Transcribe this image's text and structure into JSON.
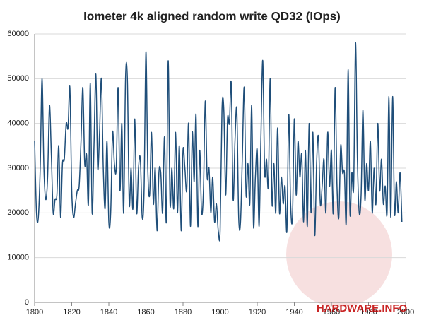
{
  "chart_data": {
    "type": "line",
    "title": "Iometer 4k aligned random write QD32 (IOps)",
    "watermark": "HARDWARE.INFO",
    "x": [
      1800,
      1801,
      1802,
      1803,
      1804,
      1805,
      1806,
      1807,
      1808,
      1809,
      1810,
      1811,
      1812,
      1813,
      1814,
      1815,
      1816,
      1817,
      1818,
      1819,
      1820,
      1821,
      1822,
      1823,
      1824,
      1825,
      1826,
      1827,
      1828,
      1829,
      1830,
      1831,
      1832,
      1833,
      1834,
      1835,
      1836,
      1837,
      1838,
      1839,
      1840,
      1841,
      1842,
      1843,
      1844,
      1845,
      1846,
      1847,
      1848,
      1849,
      1850,
      1851,
      1852,
      1853,
      1854,
      1855,
      1856,
      1857,
      1858,
      1859,
      1860,
      1861,
      1862,
      1863,
      1864,
      1865,
      1866,
      1867,
      1868,
      1869,
      1870,
      1871,
      1872,
      1873,
      1874,
      1875,
      1876,
      1877,
      1878,
      1879,
      1880,
      1881,
      1882,
      1883,
      1884,
      1885,
      1886,
      1887,
      1888,
      1889,
      1890,
      1891,
      1892,
      1893,
      1894,
      1895,
      1896,
      1897,
      1898,
      1899,
      1900,
      1901,
      1902,
      1903,
      1904,
      1905,
      1906,
      1907,
      1908,
      1909,
      1910,
      1911,
      1912,
      1913,
      1914,
      1915,
      1916,
      1917,
      1918,
      1919,
      1920,
      1921,
      1922,
      1923,
      1924,
      1925,
      1926,
      1927,
      1928,
      1929,
      1930,
      1931,
      1932,
      1933,
      1934,
      1935,
      1936,
      1937,
      1938,
      1939,
      1940,
      1941,
      1942,
      1943,
      1944,
      1945,
      1946,
      1947,
      1948,
      1949,
      1950,
      1951,
      1952,
      1953,
      1954,
      1955,
      1956,
      1957,
      1958,
      1959,
      1960,
      1961,
      1962,
      1963,
      1964,
      1965,
      1966,
      1967,
      1968,
      1969,
      1970,
      1971,
      1972,
      1973,
      1974,
      1975,
      1976,
      1977,
      1978,
      1979,
      1980,
      1981,
      1982,
      1983,
      1984,
      1985,
      1986,
      1987,
      1988,
      1989,
      1990,
      1991,
      1992,
      1993,
      1994,
      1995,
      1996,
      1997,
      1998
    ],
    "series": [
      {
        "color": "#1f4e79",
        "values": [
          36000,
          20000,
          19000,
          30000,
          50000,
          30000,
          23000,
          28000,
          44000,
          33000,
          20000,
          23000,
          24000,
          35000,
          19000,
          31000,
          32000,
          40000,
          39000,
          48000,
          25000,
          19000,
          22000,
          25000,
          26000,
          36000,
          48000,
          31000,
          33000,
          22000,
          49000,
          20000,
          35000,
          51000,
          30000,
          38000,
          50000,
          30000,
          21000,
          36000,
          18000,
          20000,
          38000,
          31000,
          30000,
          48000,
          25000,
          40000,
          20000,
          50000,
          50000,
          22000,
          30000,
          21000,
          41000,
          20000,
          30000,
          32000,
          19000,
          25000,
          56000,
          30000,
          24000,
          38000,
          22000,
          30000,
          16000,
          29000,
          29000,
          20000,
          37000,
          18000,
          54000,
          22000,
          30000,
          21000,
          38000,
          20000,
          35000,
          16000,
          34000,
          30000,
          25000,
          40000,
          17000,
          38000,
          27000,
          42000,
          17000,
          34000,
          20000,
          25000,
          45000,
          28000,
          30000,
          20000,
          28000,
          18000,
          22000,
          16000,
          16000,
          43000,
          43000,
          24000,
          41000,
          40000,
          49000,
          23000,
          36000,
          43000,
          19000,
          18000,
          33000,
          48000,
          24000,
          31000,
          22000,
          44000,
          17000,
          28000,
          34000,
          17000,
          37000,
          54000,
          29000,
          32000,
          26000,
          50000,
          22000,
          31000,
          20000,
          39000,
          20000,
          28000,
          22000,
          26000,
          16000,
          42000,
          22000,
          19000,
          41000,
          24000,
          36000,
          28000,
          33000,
          18000,
          34000,
          17000,
          40000,
          20000,
          38000,
          15000,
          31000,
          37000,
          22000,
          26000,
          32000,
          20000,
          38000,
          26000,
          34000,
          20000,
          48000,
          26000,
          19000,
          35000,
          29000,
          29000,
          18000,
          52000,
          20000,
          29000,
          26000,
          58000,
          32000,
          20000,
          24000,
          43000,
          23000,
          31000,
          25000,
          36000,
          20000,
          30000,
          22000,
          40000,
          25000,
          32000,
          22000,
          26000,
          20000,
          46000,
          19000,
          46000,
          20000,
          27000,
          20000,
          29000,
          18000
        ]
      }
    ],
    "xlim": [
      1800,
      2000
    ],
    "xticks": [
      1800,
      1820,
      1840,
      1860,
      1880,
      1900,
      1920,
      1940,
      1960,
      1980,
      2000
    ],
    "ylim": [
      0,
      60000
    ],
    "yticks": [
      0,
      10000,
      20000,
      30000,
      40000,
      50000,
      60000
    ],
    "grid": true
  }
}
